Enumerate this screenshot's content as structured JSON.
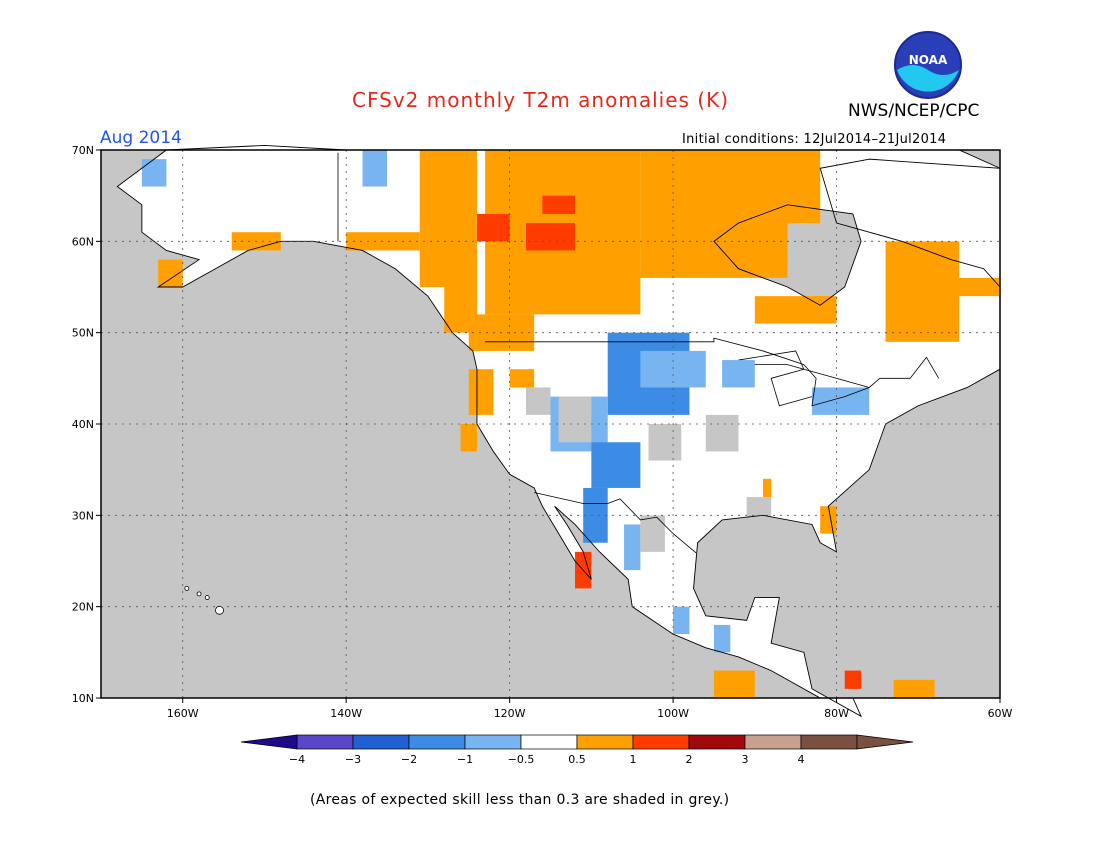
{
  "header": {
    "title": "CFSv2 monthly T2m anomalies (K)",
    "agency": "NWS/NCEP/CPC",
    "logo_text": "NOAA",
    "period": "Aug 2014",
    "initial_conditions": "Initial conditions: 12Jul2014–21Jul2014"
  },
  "map": {
    "lon_range": [
      -170,
      -60
    ],
    "lat_range": [
      10,
      70
    ],
    "lon_ticks": [
      "160W",
      "140W",
      "120W",
      "100W",
      "80W",
      "60W"
    ],
    "lat_ticks": [
      "10N",
      "20N",
      "30N",
      "40N",
      "50N",
      "60N",
      "70N"
    ],
    "grid": true,
    "low_skill_color": "#c6c6c6",
    "ocean_color": "#c6c6c6",
    "land_color": "#ffffff"
  },
  "colorbar": {
    "labels": [
      "−4",
      "−3",
      "−2",
      "−1",
      "−0.5",
      "0.5",
      "1",
      "2",
      "3",
      "4"
    ],
    "colors": [
      "#1e0b8c",
      "#5a46c8",
      "#2060d0",
      "#3c8ce6",
      "#78b4f0",
      "#ffffff",
      "#ffa000",
      "#ff3c00",
      "#a00a0a",
      "#c8a090",
      "#7a5040"
    ]
  },
  "footnote": "(Areas of expected skill less than 0.3 are shaded in grey.)"
}
